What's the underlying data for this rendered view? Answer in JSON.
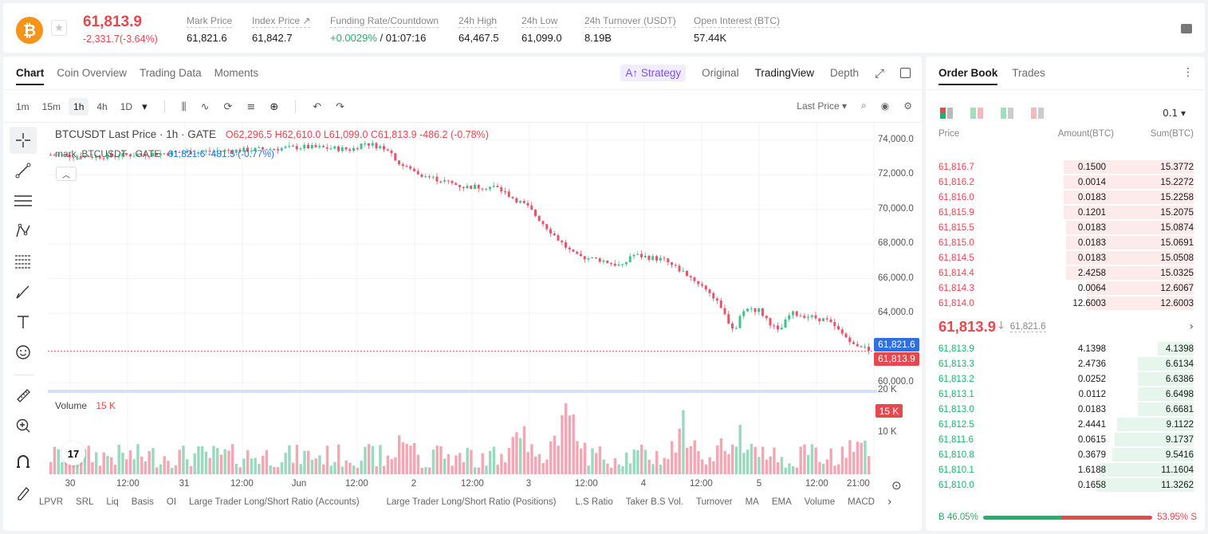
{
  "header": {
    "coin_icon": "bitcoin-icon",
    "coin_symbol": "₿",
    "favorite_icon": "star-icon",
    "favorite_glyph": "★",
    "last_price": "61,813.9",
    "change": "-2,331.7(-3.64%)",
    "stats": [
      {
        "label": "Mark Price",
        "value": "61,821.6"
      },
      {
        "label": "Index Price ↗",
        "value": "61,842.7"
      },
      {
        "label": "Funding Rate/Countdown",
        "value_green": "+0.0029%",
        "value": " / 01:07:16"
      },
      {
        "label": "24h High",
        "value": "64,467.5"
      },
      {
        "label": "24h Low",
        "value": "61,099.0"
      },
      {
        "label": "24h Turnover (USDT)",
        "value": "8.19B"
      },
      {
        "label": "Open Interest (BTC)",
        "value": "57.44K"
      }
    ]
  },
  "chart_tabs": [
    "Chart",
    "Coin Overview",
    "Trading Data",
    "Moments"
  ],
  "view_tabs": {
    "strategy": "A↑ Strategy",
    "original": "Original",
    "tradingview": "TradingView",
    "depth": "Depth",
    "expand": "⤢"
  },
  "intervals": [
    "1m",
    "15m",
    "1h",
    "4h",
    "1D"
  ],
  "interval_active": "1h",
  "toolbar_icons": {
    "candles": "⫼",
    "indicators": "∿",
    "replay": "⟳",
    "list": "≡",
    "add": "⊕",
    "undo": "↶",
    "redo": "↷",
    "dropdown": "▾"
  },
  "toolbar_right": {
    "price_type": "Last Price ▾",
    "search": "⌕",
    "camera": "◉",
    "settings": "⚙"
  },
  "chart_legend": {
    "symbol": "BTCUSDT Last Price · 1h · GATE",
    "ohlc": "O62,296.5  H62,610.0  L61,099.0  C61,813.9  -486.2 (-0.78%)",
    "mark_label": "mark_BTCUSDT · GATE",
    "mark_values": "61,821.6  -481.5  (-0.77%)",
    "volume_label": "Volume",
    "volume_value": "15 K",
    "collapse_glyph": "︿"
  },
  "price_axis": [
    "74,000.0",
    "72,000.0",
    "70,000.0",
    "68,000.0",
    "66,000.0",
    "64,000.0",
    "60,000.0"
  ],
  "volume_axis": [
    "20 K",
    "10 K"
  ],
  "price_tags": {
    "mark": "61,821.6",
    "last": "61,813.9",
    "volume": "15 K"
  },
  "time_axis": [
    "30",
    "12:00",
    "31",
    "12:00",
    "Jun",
    "12:00",
    "2",
    "12:00",
    "3",
    "12:00",
    "4",
    "12:00",
    "5",
    "12:00",
    "21:00"
  ],
  "tv_logo": "17",
  "bottom_indicators": [
    "LPVR",
    "SRL",
    "Liq",
    "Basis",
    "OI",
    "Large Trader Long/Short Ratio (Accounts)",
    "Large Trader Long/Short Ratio (Positions)",
    "L.S Ratio",
    "Taker B.S Vol.",
    "Turnover",
    "MA",
    "EMA",
    "Volume",
    "MACD"
  ],
  "bottom_more": "›",
  "colors": {
    "up": "#20b26c",
    "down": "#e5484d",
    "up_candle": "#3ec28a",
    "down_candle": "#e5566b",
    "mark_tag": "#2f6fe0"
  },
  "chart_data": {
    "type": "candlestick",
    "title": "BTCUSDT Last Price · 1h · GATE",
    "ylim": [
      59500,
      75000
    ],
    "current_price": 61813.9,
    "mark_price": 61821.6,
    "volume_ylim": [
      0,
      21000
    ],
    "volume_current": 15000
  },
  "order_book": {
    "tabs": [
      "Order Book",
      "Trades"
    ],
    "more": "⋮",
    "tick_size": "0.1 ▾",
    "headers": [
      "Price",
      "Amount(BTC)",
      "Sum(BTC)"
    ],
    "asks": [
      {
        "price": "61,816.7",
        "amount": "0.1500",
        "sum": "15.3772",
        "depth": 0.51
      },
      {
        "price": "61,816.2",
        "amount": "0.0014",
        "sum": "15.2272",
        "depth": 0.51
      },
      {
        "price": "61,816.0",
        "amount": "0.0183",
        "sum": "15.2258",
        "depth": 0.51
      },
      {
        "price": "61,815.9",
        "amount": "0.1201",
        "sum": "15.2075",
        "depth": 0.51
      },
      {
        "price": "61,815.5",
        "amount": "0.0183",
        "sum": "15.0874",
        "depth": 0.5
      },
      {
        "price": "61,815.0",
        "amount": "0.0183",
        "sum": "15.0691",
        "depth": 0.5
      },
      {
        "price": "61,814.5",
        "amount": "0.0183",
        "sum": "15.0508",
        "depth": 0.5
      },
      {
        "price": "61,814.4",
        "amount": "2.4258",
        "sum": "15.0325",
        "depth": 0.5
      },
      {
        "price": "61,814.3",
        "amount": "0.0064",
        "sum": "12.6067",
        "depth": 0.42
      },
      {
        "price": "61,814.0",
        "amount": "12.6003",
        "sum": "12.6003",
        "depth": 0.42
      }
    ],
    "mid_price": "61,813.9",
    "mid_arrow": "🡓",
    "mid_mark": "61,821.6",
    "mid_chevron": "›",
    "bids": [
      {
        "price": "61,813.9",
        "amount": "4.1398",
        "sum": "4.1398",
        "depth": 0.14
      },
      {
        "price": "61,813.3",
        "amount": "2.4736",
        "sum": "6.6134",
        "depth": 0.22
      },
      {
        "price": "61,813.2",
        "amount": "0.0252",
        "sum": "6.6386",
        "depth": 0.22
      },
      {
        "price": "61,813.1",
        "amount": "0.0112",
        "sum": "6.6498",
        "depth": 0.22
      },
      {
        "price": "61,813.0",
        "amount": "0.0183",
        "sum": "6.6681",
        "depth": 0.22
      },
      {
        "price": "61,812.5",
        "amount": "2.4441",
        "sum": "9.1122",
        "depth": 0.3
      },
      {
        "price": "61,811.6",
        "amount": "0.0615",
        "sum": "9.1737",
        "depth": 0.31
      },
      {
        "price": "61,810.8",
        "amount": "0.3679",
        "sum": "9.5416",
        "depth": 0.32
      },
      {
        "price": "61,810.1",
        "amount": "1.6188",
        "sum": "11.1604",
        "depth": 0.37
      },
      {
        "price": "61,810.0",
        "amount": "0.1658",
        "sum": "11.3262",
        "depth": 0.38
      }
    ],
    "buy_ratio": "B 46.05%",
    "sell_ratio": "53.95% S",
    "buy_fraction": 0.4605
  }
}
